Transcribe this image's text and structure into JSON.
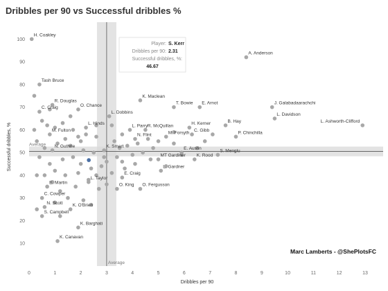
{
  "title": "Dribbles per 90 vs Successful dribbles %",
  "credit": "Marc Lamberts - @ShePlotsFC",
  "average_label": "Average",
  "tooltip": {
    "player_label": "Player:",
    "player": "S. Kerr",
    "dribbles_label": "Dribbles per 90:",
    "dribbles": "2.31",
    "success_label": "Successful dribbles, %:",
    "success": "46.67"
  },
  "colors": {
    "point": "#a8a8a8",
    "highlight": "#4a6fa5",
    "average_band": "#d9d9d9",
    "average_line": "#555555"
  },
  "chart_data": {
    "type": "scatter",
    "title": "Dribbles per 90 vs Successful dribbles %",
    "xlabel": "Dribbles per 90",
    "ylabel": "Successful dribbles, %",
    "xlim": [
      0,
      13
    ],
    "ylim": [
      0,
      105
    ],
    "xticks": [
      0,
      1,
      2,
      3,
      4,
      5,
      6,
      7,
      8,
      9,
      10,
      11,
      12,
      13
    ],
    "yticks": [
      10,
      20,
      30,
      40,
      50,
      60,
      70,
      80,
      90,
      100
    ],
    "grid": false,
    "average_x": 3.0,
    "average_y": 50.5,
    "highlight": {
      "name": "S. Kerr",
      "x": 2.31,
      "y": 46.67
    },
    "labeled_points": [
      {
        "name": "H. Coakley",
        "x": 0.1,
        "y": 100
      },
      {
        "name": "A. Anderson",
        "x": 8.4,
        "y": 92
      },
      {
        "name": "Tash Bruce",
        "x": 0.4,
        "y": 80
      },
      {
        "name": "K. Maclean",
        "x": 4.3,
        "y": 73
      },
      {
        "name": "R. Douglas",
        "x": 0.9,
        "y": 71
      },
      {
        "name": "T. Bowie",
        "x": 5.6,
        "y": 70
      },
      {
        "name": "E. Arnot",
        "x": 6.6,
        "y": 70
      },
      {
        "name": "J. Galabadaarachchi",
        "x": 9.4,
        "y": 70
      },
      {
        "name": "C. Craig",
        "x": 0.4,
        "y": 68
      },
      {
        "name": "O. Chance",
        "x": 1.9,
        "y": 69
      },
      {
        "name": "L. Dobbins",
        "x": 3.1,
        "y": 66
      },
      {
        "name": "L. Davidson",
        "x": 9.5,
        "y": 65
      },
      {
        "name": "L. Ashworth-Clifford",
        "x": 12.9,
        "y": 62
      },
      {
        "name": "H. Kerner",
        "x": 6.2,
        "y": 61
      },
      {
        "name": "B. Hay",
        "x": 7.6,
        "y": 62
      },
      {
        "name": "L. Hinds",
        "x": 2.2,
        "y": 61
      },
      {
        "name": "L. Parry",
        "x": 3.9,
        "y": 60
      },
      {
        "name": "R. McQuillan",
        "x": 4.5,
        "y": 60
      },
      {
        "name": "C. Gibb",
        "x": 6.3,
        "y": 58
      },
      {
        "name": "M. Fulton",
        "x": 0.8,
        "y": 58
      },
      {
        "name": "M. Forsyth",
        "x": 5.3,
        "y": 57
      },
      {
        "name": "N. Flint",
        "x": 4.1,
        "y": 56
      },
      {
        "name": "P. Chinchilla",
        "x": 8.0,
        "y": 57
      },
      {
        "name": "N. Guthrie",
        "x": 0.9,
        "y": 51
      },
      {
        "name": "K. Smart",
        "x": 2.9,
        "y": 51
      },
      {
        "name": "E. Austin",
        "x": 5.9,
        "y": 50
      },
      {
        "name": "S. Menglu",
        "x": 7.3,
        "y": 49
      },
      {
        "name": "MT Gardiner",
        "x": 5.0,
        "y": 47
      },
      {
        "name": "K. Rood",
        "x": 6.4,
        "y": 47
      },
      {
        "name": "L. Gardner",
        "x": 5.1,
        "y": 42
      },
      {
        "name": "E. Craig",
        "x": 3.6,
        "y": 39
      },
      {
        "name": "L. Taylor",
        "x": 2.3,
        "y": 37
      },
      {
        "name": "E. Martin",
        "x": 0.7,
        "y": 35
      },
      {
        "name": "O. King",
        "x": 3.4,
        "y": 34
      },
      {
        "name": "O. Fergusson",
        "x": 4.3,
        "y": 34
      },
      {
        "name": "C. Cowper",
        "x": 0.5,
        "y": 30
      },
      {
        "name": "N. Scott",
        "x": 0.6,
        "y": 26
      },
      {
        "name": "K. O'Brien",
        "x": 1.6,
        "y": 25
      },
      {
        "name": "S. Campbell",
        "x": 0.5,
        "y": 22
      },
      {
        "name": "K. Barghati",
        "x": 1.9,
        "y": 17
      },
      {
        "name": "K. Canavan",
        "x": 1.1,
        "y": 11
      }
    ],
    "other_points": [
      {
        "x": 0.2,
        "y": 75
      },
      {
        "x": 0.5,
        "y": 64
      },
      {
        "x": 0.7,
        "y": 62
      },
      {
        "x": 0.2,
        "y": 60
      },
      {
        "x": 1.3,
        "y": 63
      },
      {
        "x": 1.0,
        "y": 61
      },
      {
        "x": 1.7,
        "y": 60
      },
      {
        "x": 2.2,
        "y": 58
      },
      {
        "x": 1.4,
        "y": 56
      },
      {
        "x": 1.9,
        "y": 57
      },
      {
        "x": 0.3,
        "y": 55
      },
      {
        "x": 1.1,
        "y": 54
      },
      {
        "x": 1.6,
        "y": 53
      },
      {
        "x": 2.0,
        "y": 55
      },
      {
        "x": 2.6,
        "y": 57
      },
      {
        "x": 3.2,
        "y": 62
      },
      {
        "x": 3.6,
        "y": 58
      },
      {
        "x": 3.3,
        "y": 55
      },
      {
        "x": 3.5,
        "y": 52
      },
      {
        "x": 3.8,
        "y": 53
      },
      {
        "x": 4.2,
        "y": 54
      },
      {
        "x": 4.6,
        "y": 56
      },
      {
        "x": 5.0,
        "y": 55
      },
      {
        "x": 5.6,
        "y": 54
      },
      {
        "x": 4.8,
        "y": 52
      },
      {
        "x": 4.4,
        "y": 50
      },
      {
        "x": 4.0,
        "y": 49
      },
      {
        "x": 3.4,
        "y": 48
      },
      {
        "x": 3.0,
        "y": 46
      },
      {
        "x": 2.8,
        "y": 44
      },
      {
        "x": 2.4,
        "y": 43
      },
      {
        "x": 2.0,
        "y": 45
      },
      {
        "x": 1.7,
        "y": 48
      },
      {
        "x": 1.3,
        "y": 47
      },
      {
        "x": 0.8,
        "y": 45
      },
      {
        "x": 0.4,
        "y": 48
      },
      {
        "x": 1.0,
        "y": 42
      },
      {
        "x": 0.6,
        "y": 40
      },
      {
        "x": 1.4,
        "y": 40
      },
      {
        "x": 1.9,
        "y": 41
      },
      {
        "x": 2.6,
        "y": 40
      },
      {
        "x": 3.2,
        "y": 41
      },
      {
        "x": 3.7,
        "y": 43
      },
      {
        "x": 4.1,
        "y": 45
      },
      {
        "x": 4.7,
        "y": 47
      },
      {
        "x": 5.3,
        "y": 44
      },
      {
        "x": 5.9,
        "y": 49
      },
      {
        "x": 2.3,
        "y": 38
      },
      {
        "x": 1.8,
        "y": 35
      },
      {
        "x": 1.2,
        "y": 33
      },
      {
        "x": 0.3,
        "y": 40
      },
      {
        "x": 0.9,
        "y": 37
      },
      {
        "x": 2.7,
        "y": 34
      },
      {
        "x": 3.0,
        "y": 36
      },
      {
        "x": 1.5,
        "y": 30
      },
      {
        "x": 1.0,
        "y": 28
      },
      {
        "x": 2.1,
        "y": 29
      },
      {
        "x": 0.3,
        "y": 25
      },
      {
        "x": 1.2,
        "y": 22
      },
      {
        "x": 2.4,
        "y": 27
      },
      {
        "x": 2.9,
        "y": 48
      },
      {
        "x": 2.5,
        "y": 50
      },
      {
        "x": 2.1,
        "y": 51
      },
      {
        "x": 3.6,
        "y": 46
      },
      {
        "x": 0.6,
        "y": 52
      },
      {
        "x": 6.8,
        "y": 55
      },
      {
        "x": 7.1,
        "y": 58
      },
      {
        "x": 1.6,
        "y": 66
      },
      {
        "x": 0.8,
        "y": 69
      },
      {
        "x": 2.6,
        "y": 62
      },
      {
        "x": 5.6,
        "y": 59
      },
      {
        "x": 6.5,
        "y": 52
      }
    ]
  }
}
